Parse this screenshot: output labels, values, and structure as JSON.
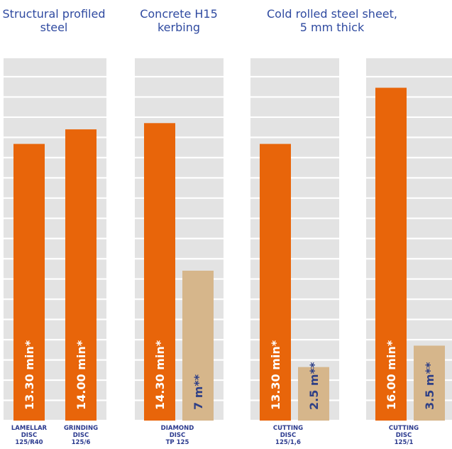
{
  "colors": {
    "panel": "#e3e3e3",
    "grid": "#ffffff",
    "time_bar": "#e8650a",
    "length_bar": "#d6b68b",
    "title_text": "#2f4aa0",
    "category_text": "#2b3a8e",
    "length_label_text": "#2e3f86"
  },
  "chart_data": {
    "type": "bar",
    "groups": [
      {
        "title": [
          "Structural profiled",
          "steel"
        ],
        "bars": [
          {
            "series": "time",
            "value": 13.3,
            "label": "13.30 min*",
            "category": [
              "LAMELLAR",
              "DISC",
              "125/R40"
            ]
          },
          {
            "series": "time",
            "value": 14.0,
            "label": "14.00 min*",
            "category": [
              "GRINDING",
              "DISC",
              "125/6"
            ]
          }
        ]
      },
      {
        "title": [
          "Concrete H15",
          "kerbing"
        ],
        "bars": [
          {
            "series": "time",
            "value": 14.3,
            "label": "14.30 min*"
          },
          {
            "series": "length",
            "value": 7,
            "label": "7 m**"
          }
        ],
        "category": [
          "DIAMOND",
          "DISC",
          "TP 125"
        ]
      },
      {
        "title": [
          "Cold rolled steel sheet,",
          "5 mm thick"
        ],
        "bars": [
          {
            "series": "time",
            "value": 13.3,
            "label": "13.30 min*"
          },
          {
            "series": "length",
            "value": 2.5,
            "label": "2.5 m**"
          }
        ],
        "category": [
          "CUTTING",
          "DISC",
          "125/1,6"
        ]
      },
      {
        "title": [],
        "bars": [
          {
            "series": "time",
            "value": 16.0,
            "label": "16.00 min*"
          },
          {
            "series": "length",
            "value": 3.5,
            "label": "3.5 m**"
          }
        ],
        "category": [
          "CUTTING",
          "DISC",
          "125/1"
        ]
      }
    ],
    "series_scale_max": {
      "time": 16.7,
      "length": 14.2
    },
    "grid": true,
    "gridline_count": 17
  }
}
